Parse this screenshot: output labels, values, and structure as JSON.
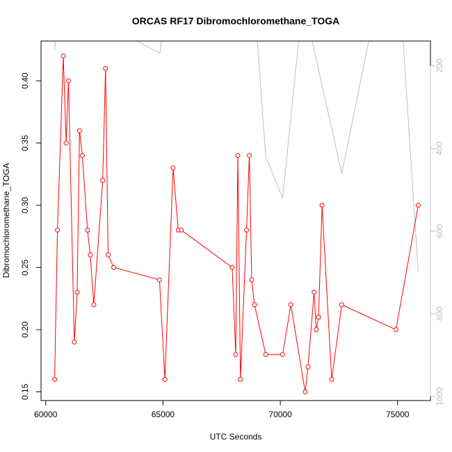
{
  "chart_data": {
    "type": "line",
    "title": "ORCAS RF17 Dibromochloromethane_TOGA",
    "xlabel": "UTC Seconds",
    "ylabel": "Dibromochloromethane_TOGA",
    "xlim": [
      59800,
      76400
    ],
    "ylim": [
      0.143,
      0.432
    ],
    "x_ticks": [
      60000,
      65000,
      70000,
      75000
    ],
    "y_ticks": [
      0.15,
      0.2,
      0.25,
      0.3,
      0.35,
      0.4
    ],
    "y_tick_labels": [
      "0.15",
      "0.20",
      "0.25",
      "0.30",
      "0.35",
      "0.40"
    ],
    "y2_lim": [
      1010,
      140
    ],
    "y2_ticks": [
      200,
      400,
      600,
      800,
      1000
    ],
    "colors": {
      "series": "#ff0000",
      "secondary": "#bebebe",
      "axis": "#000000"
    },
    "series": [
      {
        "values_x": [
          60380,
          60500,
          60750,
          60870,
          60970,
          61220,
          61340,
          61440,
          61560,
          61780,
          61900,
          62050,
          62430,
          62550,
          62660,
          62900,
          64850,
          65080,
          65430,
          65650,
          65780,
          67950,
          68100,
          68190,
          68300,
          68560,
          68680,
          68780,
          68900,
          69380,
          70100,
          70450,
          71060,
          71180,
          71440,
          71530,
          71630,
          71780,
          72190,
          72620,
          74930,
          75880
        ],
        "values_y": [
          0.16,
          0.28,
          0.42,
          0.35,
          0.4,
          0.19,
          0.23,
          0.36,
          0.34,
          0.28,
          0.26,
          0.22,
          0.32,
          0.41,
          0.26,
          0.25,
          0.24,
          0.16,
          0.33,
          0.28,
          0.28,
          0.25,
          0.18,
          0.34,
          0.16,
          0.28,
          0.34,
          0.24,
          0.22,
          0.18,
          0.18,
          0.22,
          0.15,
          0.17,
          0.23,
          0.2,
          0.21,
          0.3,
          0.16,
          0.22,
          0.2,
          0.3
        ]
      }
    ],
    "secondary_series": {
      "x": [
        60380,
        60610,
        60900,
        61150,
        61580,
        61630,
        62000,
        62160,
        62940,
        64870,
        65080,
        65800,
        67950,
        68060,
        68920,
        69380,
        70100,
        70960,
        72620,
        74130,
        75120,
        75880
      ],
      "y": [
        160,
        30,
        40,
        20,
        110,
        110,
        110,
        20,
        110,
        170,
        60,
        100,
        140,
        60,
        60,
        420,
        520,
        40,
        460,
        40,
        40,
        700
      ]
    }
  }
}
